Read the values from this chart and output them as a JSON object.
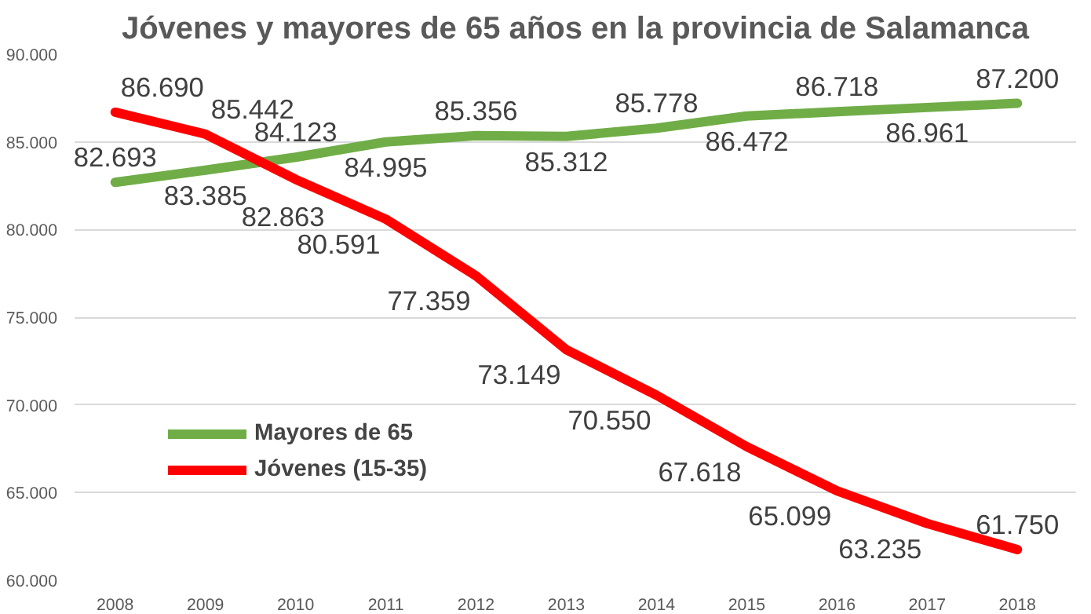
{
  "chart_data": {
    "type": "line",
    "title": "Jóvenes y mayores de 65 años en la provincia de Salamanca",
    "categories": [
      "2008",
      "2009",
      "2010",
      "2011",
      "2012",
      "2013",
      "2014",
      "2015",
      "2016",
      "2017",
      "2018"
    ],
    "series": [
      {
        "name": "Mayores de 65",
        "color": "#70ad47",
        "values": [
          82693,
          83385,
          84123,
          84995,
          85356,
          85312,
          85778,
          86472,
          86718,
          86961,
          87200
        ],
        "value_labels": [
          "82.693",
          "83.385",
          "84.123",
          "84.995",
          "85.356",
          "85.312",
          "85.778",
          "86.472",
          "86.718",
          "86.961",
          "87.200"
        ]
      },
      {
        "name": "Jóvenes (15-35)",
        "color": "#ff0000",
        "values": [
          86690,
          85442,
          82863,
          80591,
          77359,
          73149,
          70550,
          67618,
          65099,
          63235,
          61750
        ],
        "value_labels": [
          "86.690",
          "85.442",
          "82.863",
          "80.591",
          "77.359",
          "73.149",
          "70.550",
          "67.618",
          "65.099",
          "63.235",
          "61.750"
        ]
      }
    ],
    "ylim": [
      60000,
      90000
    ],
    "yticks": [
      {
        "value": 60000,
        "label": "60.000"
      },
      {
        "value": 65000,
        "label": "65.000"
      },
      {
        "value": 70000,
        "label": "70.000"
      },
      {
        "value": 75000,
        "label": "75.000"
      },
      {
        "value": 80000,
        "label": "80.000"
      },
      {
        "value": 85000,
        "label": "85.000"
      },
      {
        "value": 90000,
        "label": "90.000"
      }
    ],
    "grid": "y",
    "legend": "bottom left",
    "marker": "none",
    "line_style": "solid"
  }
}
